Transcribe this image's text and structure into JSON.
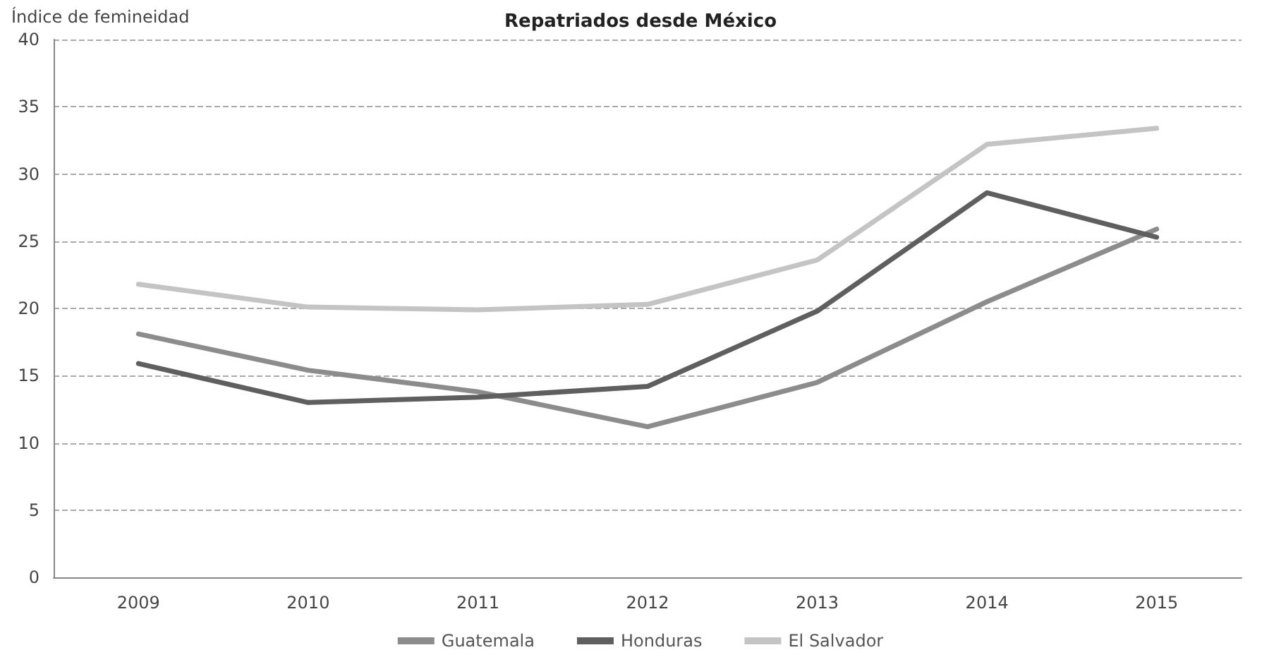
{
  "chart_data": {
    "type": "line",
    "title": "Repatriados desde México",
    "ylabel": "Índice de femineidad",
    "categories": [
      "2009",
      "2010",
      "2011",
      "2012",
      "2013",
      "2014",
      "2015"
    ],
    "series": [
      {
        "name": "Guatemala",
        "color": "#8c8c8c",
        "values": [
          18.1,
          15.4,
          13.8,
          11.2,
          14.5,
          20.5,
          25.9
        ]
      },
      {
        "name": "Honduras",
        "color": "#5f5f5f",
        "values": [
          15.9,
          13.0,
          13.4,
          14.2,
          19.8,
          28.6,
          25.3
        ]
      },
      {
        "name": "El Salvador",
        "color": "#c4c4c4",
        "values": [
          21.8,
          20.1,
          19.9,
          20.3,
          23.6,
          32.2,
          33.4
        ]
      }
    ],
    "ylim": [
      0,
      40
    ],
    "yticks": [
      0,
      5,
      10,
      15,
      20,
      25,
      30,
      35,
      40
    ],
    "grid": "y",
    "legend": "bottom",
    "marker": "none",
    "line_style": "solid"
  }
}
